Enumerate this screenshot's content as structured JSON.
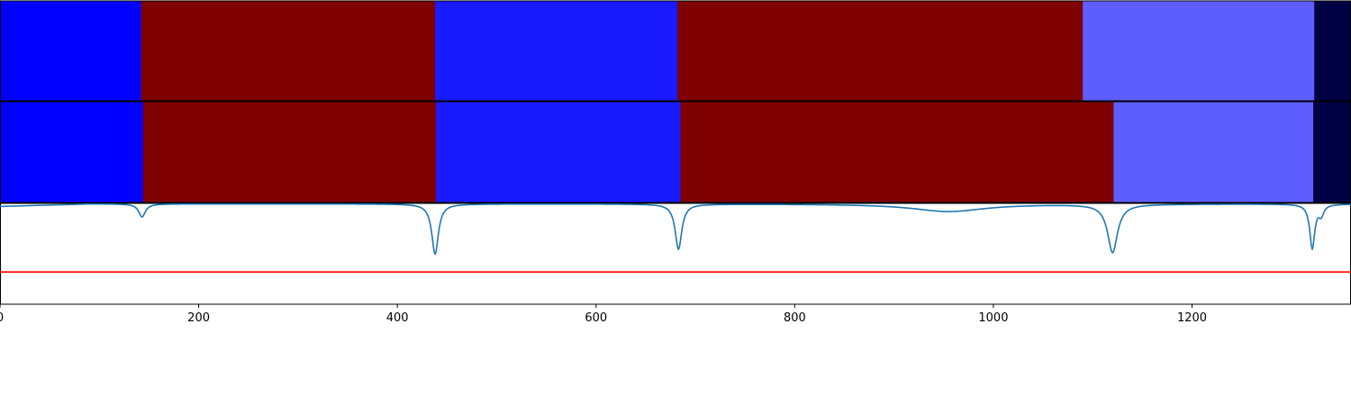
{
  "chart_data": [
    {
      "type": "heatmap",
      "panel": "segmentation-row-1",
      "xlim": [
        0,
        1360
      ],
      "segments": [
        {
          "start": 0,
          "end": 142,
          "color": "#0000ff"
        },
        {
          "start": 142,
          "end": 438,
          "color": "#7f0000"
        },
        {
          "start": 438,
          "end": 682,
          "color": "#1a1aff"
        },
        {
          "start": 682,
          "end": 1090,
          "color": "#7f0000"
        },
        {
          "start": 1090,
          "end": 1323,
          "color": "#5e5eff"
        },
        {
          "start": 1323,
          "end": 1360,
          "color": "#000044"
        }
      ]
    },
    {
      "type": "heatmap",
      "panel": "segmentation-row-2",
      "xlim": [
        0,
        1360
      ],
      "segments": [
        {
          "start": 0,
          "end": 144,
          "color": "#0000ff"
        },
        {
          "start": 144,
          "end": 439,
          "color": "#7f0000"
        },
        {
          "start": 439,
          "end": 685,
          "color": "#1a1aff"
        },
        {
          "start": 685,
          "end": 1121,
          "color": "#7f0000"
        },
        {
          "start": 1121,
          "end": 1322,
          "color": "#5e5eff"
        },
        {
          "start": 1322,
          "end": 1360,
          "color": "#000044"
        }
      ]
    },
    {
      "type": "line",
      "panel": "score-curve",
      "xlim": [
        0,
        1360
      ],
      "ylim": [
        0,
        1
      ],
      "xticks": [
        0,
        200,
        400,
        600,
        800,
        1000,
        1200
      ],
      "xtick_labels": [
        "0",
        "200",
        "400",
        "600",
        "800",
        "1000",
        "1200"
      ],
      "threshold": {
        "value": 0.32,
        "color": "#ff0000"
      },
      "series": [
        {
          "color": "#1f77b4",
          "baseline": 0.995,
          "start_value": 0.97,
          "dips": [
            {
              "x": 143,
              "depth": 0.13,
              "width": 4
            },
            {
              "x": 438,
              "depth": 0.5,
              "width": 4
            },
            {
              "x": 683,
              "depth": 0.45,
              "width": 4
            },
            {
              "x": 955,
              "depth": 0.075,
              "width": 45
            },
            {
              "x": 1120,
              "depth": 0.48,
              "width": 6
            },
            {
              "x": 1321,
              "depth": 0.44,
              "width": 3
            },
            {
              "x": 1330,
              "depth": 0.1,
              "width": 3
            }
          ]
        }
      ]
    }
  ]
}
